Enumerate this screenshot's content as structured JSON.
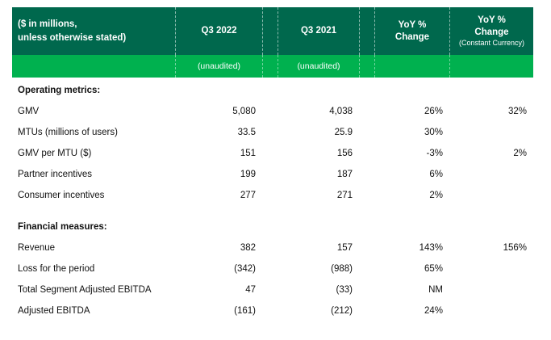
{
  "colors": {
    "header_dark_green": "#00684D",
    "header_bright_green": "#00B14F",
    "header_text": "#FFFFFF",
    "body_text": "#111111"
  },
  "table": {
    "note": {
      "line1": "($ in millions,",
      "line2": "unless otherwise stated)"
    },
    "columns": {
      "q3_2022": {
        "label": "Q3 2022",
        "sublabel": "(unaudited)"
      },
      "q3_2021": {
        "label": "Q3 2021",
        "sublabel": "(unaudited)"
      },
      "yoy": {
        "label_line1": "YoY %",
        "label_line2": "Change"
      },
      "yoy_cc": {
        "label_line1": "YoY %",
        "label_line2": "Change",
        "label_line3": "(Constant Currency)"
      }
    },
    "rows": [
      {
        "type": "section",
        "label": "Operating metrics:"
      },
      {
        "type": "data",
        "label": "GMV",
        "q3_2022": "5,080",
        "q3_2021": "4,038",
        "yoy": "26%",
        "yoy_cc": "32%"
      },
      {
        "type": "data",
        "label": "MTUs (millions of users)",
        "q3_2022": "33.5",
        "q3_2021": "25.9",
        "yoy": "30%",
        "yoy_cc": ""
      },
      {
        "type": "data",
        "label": "GMV per MTU ($)",
        "q3_2022": "151",
        "q3_2021": "156",
        "yoy": "-3%",
        "yoy_cc": "2%"
      },
      {
        "type": "data",
        "label": "Partner incentives",
        "q3_2022": "199",
        "q3_2021": "187",
        "yoy": "6%",
        "yoy_cc": ""
      },
      {
        "type": "data",
        "label": "Consumer incentives",
        "q3_2022": "277",
        "q3_2021": "271",
        "yoy": "2%",
        "yoy_cc": ""
      },
      {
        "type": "spacer"
      },
      {
        "type": "section",
        "label": "Financial measures:"
      },
      {
        "type": "data",
        "label": "Revenue",
        "q3_2022": "382",
        "q3_2021": "157",
        "yoy": "143%",
        "yoy_cc": "156%"
      },
      {
        "type": "data",
        "label": "Loss for the period",
        "q3_2022": "(342)",
        "q3_2021": "(988)",
        "yoy": "65%",
        "yoy_cc": ""
      },
      {
        "type": "data",
        "label": "Total Segment Adjusted EBITDA",
        "q3_2022": "47",
        "q3_2021": "(33)",
        "yoy": "NM",
        "yoy_cc": ""
      },
      {
        "type": "data",
        "label": "Adjusted EBITDA",
        "q3_2022": "(161)",
        "q3_2021": "(212)",
        "yoy": "24%",
        "yoy_cc": ""
      }
    ]
  }
}
